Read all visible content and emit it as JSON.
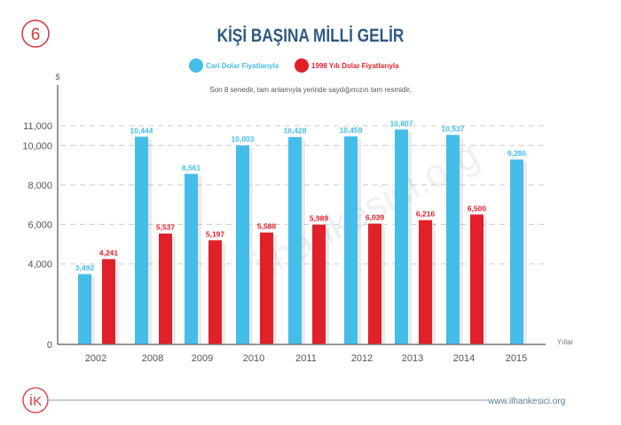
{
  "page_number": "6",
  "footer": {
    "logo": "İK",
    "url": "www.ilhankesici.org"
  },
  "watermark": "ilhankesici.org",
  "colors": {
    "blue": "#45bde9",
    "red": "#e2202a",
    "title": "#2f5a82"
  },
  "chart_data": {
    "type": "bar",
    "title": "KİŞİ BAŞINA MİLLİ GELİR",
    "subtitle": "Son 8 senedir, tam anlamıyla yerinde saydığımızın tam resmidir.",
    "ylabel": "$",
    "xlabel": "Yıllar",
    "yticks": [
      0,
      4000,
      6000,
      8000,
      10000,
      11000
    ],
    "ytick_labels": [
      "0",
      "4,000",
      "6,000",
      "8,000",
      "10,000",
      "11,000"
    ],
    "ylim": [
      0,
      11000
    ],
    "grid": true,
    "legend_position": "top-center",
    "categories": [
      "2002",
      "2008",
      "2009",
      "2010",
      "2011",
      "2012",
      "2013",
      "2014",
      "2015"
    ],
    "series": [
      {
        "name": "Cari Dolar Fiyatlarıyla",
        "color": "#45bde9",
        "values": [
          3492,
          10444,
          8561,
          10003,
          10428,
          10459,
          10807,
          10537,
          9286
        ],
        "labels": [
          "3,492",
          "10,444",
          "8,561",
          "10,003",
          "10,428",
          "10,459",
          "10,807",
          "10,537",
          "9,286"
        ]
      },
      {
        "name": "1998 Yılı Dolar Fiyatlarıyla",
        "color": "#e2202a",
        "values": [
          4241,
          5537,
          5197,
          5588,
          5989,
          6039,
          6216,
          6500,
          null
        ],
        "labels": [
          "4,241",
          "5,537",
          "5,197",
          "5,588",
          "5,989",
          "6,039",
          "6,216",
          "6,500",
          null
        ]
      }
    ]
  }
}
